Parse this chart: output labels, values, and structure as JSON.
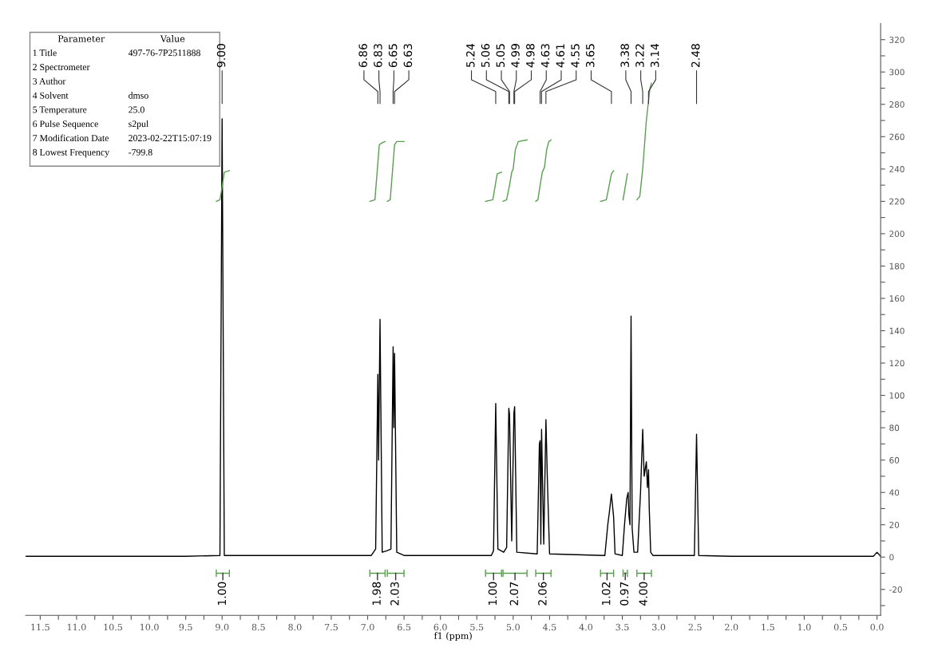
{
  "chart_data": {
    "type": "line",
    "xlabel": "f1 (ppm)",
    "xlim": [
      11.7,
      -0.05
    ],
    "ylim": [
      -36,
      330
    ],
    "xticks": [
      {
        "value": 11.5,
        "label": "11.5"
      },
      {
        "value": 11.25,
        "label": null
      },
      {
        "value": 11.0,
        "label": "11.0"
      },
      {
        "value": 10.75,
        "label": null
      },
      {
        "value": 10.5,
        "label": "10.5"
      },
      {
        "value": 10.25,
        "label": null
      },
      {
        "value": 10.0,
        "label": "10.0"
      },
      {
        "value": 9.75,
        "label": null
      },
      {
        "value": 9.5,
        "label": "9.5"
      },
      {
        "value": 9.25,
        "label": null
      },
      {
        "value": 9.0,
        "label": "9.0"
      },
      {
        "value": 8.75,
        "label": null
      },
      {
        "value": 8.5,
        "label": "8.5"
      },
      {
        "value": 8.25,
        "label": null
      },
      {
        "value": 8.0,
        "label": "8.0"
      },
      {
        "value": 7.75,
        "label": null
      },
      {
        "value": 7.5,
        "label": "7.5"
      },
      {
        "value": 7.25,
        "label": null
      },
      {
        "value": 7.0,
        "label": "7.0"
      },
      {
        "value": 6.75,
        "label": null
      },
      {
        "value": 6.5,
        "label": "6.5"
      },
      {
        "value": 6.25,
        "label": null
      },
      {
        "value": 6.0,
        "label": "6.0"
      },
      {
        "value": 5.75,
        "label": null
      },
      {
        "value": 5.5,
        "label": "5.5"
      },
      {
        "value": 5.25,
        "label": null
      },
      {
        "value": 5.0,
        "label": "5.0"
      },
      {
        "value": 4.75,
        "label": null
      },
      {
        "value": 4.5,
        "label": "4.5"
      },
      {
        "value": 4.25,
        "label": null
      },
      {
        "value": 4.0,
        "label": "4.0"
      },
      {
        "value": 3.75,
        "label": null
      },
      {
        "value": 3.5,
        "label": "3.5"
      },
      {
        "value": 3.25,
        "label": null
      },
      {
        "value": 3.0,
        "label": "3.0"
      },
      {
        "value": 2.75,
        "label": null
      },
      {
        "value": 2.5,
        "label": "2.5"
      },
      {
        "value": 2.25,
        "label": null
      },
      {
        "value": 2.0,
        "label": "2.0"
      },
      {
        "value": 1.75,
        "label": null
      },
      {
        "value": 1.5,
        "label": "1.5"
      },
      {
        "value": 1.25,
        "label": null
      },
      {
        "value": 1.0,
        "label": "1.0"
      },
      {
        "value": 0.75,
        "label": null
      },
      {
        "value": 0.5,
        "label": "0.5"
      },
      {
        "value": 0.25,
        "label": null
      },
      {
        "value": 0.0,
        "label": "0.0"
      }
    ],
    "yticks": [
      {
        "value": -30,
        "label": null
      },
      -20,
      {
        "value": -10,
        "label": null
      },
      0,
      {
        "value": 10,
        "label": null
      },
      20,
      {
        "value": 30,
        "label": null
      },
      40,
      {
        "value": 50,
        "label": null
      },
      60,
      {
        "value": 70,
        "label": null
      },
      80,
      {
        "value": 90,
        "label": null
      },
      100,
      {
        "value": 110,
        "label": null
      },
      120,
      {
        "value": 130,
        "label": null
      },
      140,
      {
        "value": 150,
        "label": null
      },
      160,
      {
        "value": 170,
        "label": null
      },
      180,
      {
        "value": 190,
        "label": null
      },
      200,
      {
        "value": 210,
        "label": null
      },
      220,
      {
        "value": 230,
        "label": null
      },
      240,
      {
        "value": 250,
        "label": null
      },
      260,
      {
        "value": 270,
        "label": null
      },
      280,
      {
        "value": 290,
        "label": null
      },
      300,
      {
        "value": 310,
        "label": null
      },
      320
    ],
    "grid": false,
    "legend": false,
    "marker": "none",
    "line_style": "solid",
    "series": [
      {
        "color": "#000000",
        "x": [
          11.7,
          9.5,
          9.03,
          9.0,
          8.97,
          6.95,
          6.89,
          6.86,
          6.85,
          6.83,
          6.8,
          6.73,
          6.68,
          6.65,
          6.64,
          6.63,
          6.6,
          6.5,
          5.3,
          5.27,
          5.24,
          5.21,
          5.13,
          5.09,
          5.06,
          5.05,
          5.02,
          4.99,
          4.98,
          4.95,
          4.67,
          4.64,
          4.63,
          4.62,
          4.61,
          4.58,
          4.55,
          4.53,
          4.5,
          3.74,
          3.7,
          3.68,
          3.65,
          3.62,
          3.6,
          3.5,
          3.47,
          3.44,
          3.42,
          3.41,
          3.395,
          3.38,
          3.365,
          3.34,
          3.29,
          3.25,
          3.22,
          3.2,
          3.17,
          3.155,
          3.14,
          3.13,
          3.11,
          3.08,
          3.03,
          2.51,
          2.48,
          2.45,
          2.0,
          0.05,
          0.0,
          -0.05
        ],
        "values": [
          0.5,
          0.5,
          1,
          271,
          1,
          1,
          5,
          113,
          60,
          147,
          3,
          4,
          5,
          130,
          80,
          126,
          3,
          1,
          1,
          4,
          95,
          5,
          3,
          6,
          92,
          88,
          10,
          89,
          93,
          3,
          2,
          70,
          72,
          8,
          79,
          8,
          85,
          48,
          2,
          1,
          20,
          27,
          39,
          25,
          2,
          1,
          20,
          36,
          40,
          26,
          20,
          149,
          18,
          3,
          3,
          40,
          79,
          50,
          59,
          43,
          54,
          30,
          3,
          1,
          1,
          1,
          76,
          1,
          0.5,
          0.5,
          3,
          0.5
        ]
      },
      {
        "color": "#5a9e50",
        "x": [
          9.08,
          9.03,
          9.0,
          8.97,
          8.9
        ],
        "values": [
          220,
          221,
          229,
          238,
          239
        ]
      },
      {
        "color": "#5a9e50",
        "x": [
          6.97,
          6.9,
          6.87,
          6.84,
          6.81,
          6.76
        ],
        "values": [
          220,
          221,
          238,
          255,
          256,
          257
        ]
      },
      {
        "color": "#5a9e50",
        "x": [
          6.73,
          6.69,
          6.66,
          6.63,
          6.6,
          6.5
        ],
        "values": [
          220,
          221,
          238,
          255,
          257,
          257
        ]
      },
      {
        "color": "#5a9e50",
        "x": [
          5.38,
          5.28,
          5.25,
          5.22,
          5.16
        ],
        "values": [
          220,
          221,
          229,
          237,
          238
        ]
      },
      {
        "color": "#5a9e50",
        "x": [
          5.14,
          5.09,
          5.05,
          5.02,
          5.0,
          4.97,
          4.93,
          4.81
        ],
        "values": [
          220,
          221,
          230,
          238,
          240,
          252,
          257,
          258
        ]
      },
      {
        "color": "#5a9e50",
        "x": [
          4.69,
          4.66,
          4.63,
          4.6,
          4.57,
          4.54,
          4.51,
          4.48
        ],
        "values": [
          220,
          221,
          230,
          238,
          241,
          252,
          257,
          258
        ]
      },
      {
        "color": "#5a9e50",
        "x": [
          3.8,
          3.72,
          3.68,
          3.65,
          3.62
        ],
        "values": [
          220,
          221,
          230,
          237,
          239
        ]
      },
      {
        "color": "#5a9e50",
        "x": [
          3.49,
          3.43
        ],
        "values": [
          221,
          237
        ]
      },
      {
        "color": "#5a9e50",
        "x": [
          3.3,
          3.26,
          3.22,
          3.17,
          3.12,
          3.1
        ],
        "values": [
          221,
          223,
          240,
          270,
          290,
          293
        ]
      }
    ],
    "annotations": [
      "Parameter\tValue",
      "1 Title\t497-76-7P2511888",
      "2 Spectrometer",
      "3 Author",
      "4 Solvent\tdmso",
      "5 Temperature\t25.0",
      "6 Pulse Sequence\ts2pul",
      "7 Modification Date\t2023-02-22T15:07:19",
      "8 Lowest Frequency\t-799.8",
      {
        "text": "9.00",
        "x": 9.0
      },
      {
        "text": "6.86",
        "x": 6.86
      },
      {
        "text": "6.83",
        "x": 6.83
      },
      {
        "text": "6.65",
        "x": 6.65
      },
      {
        "text": "6.63",
        "x": 6.63
      },
      {
        "text": "5.24",
        "x": 5.24
      },
      {
        "text": "5.06",
        "x": 5.06
      },
      {
        "text": "5.05",
        "x": 5.05
      },
      {
        "text": "4.99",
        "x": 4.99
      },
      {
        "text": "4.98",
        "x": 4.98
      },
      {
        "text": "4.63",
        "x": 4.63
      },
      {
        "text": "4.61",
        "x": 4.61
      },
      {
        "text": "4.55",
        "x": 4.55
      },
      {
        "text": "3.65",
        "x": 3.65
      },
      {
        "text": "3.38",
        "x": 3.38
      },
      {
        "text": "3.22",
        "x": 3.22
      },
      {
        "text": "3.14",
        "x": 3.14
      },
      {
        "text": "2.48",
        "x": 2.48
      },
      "1.00",
      "1.98",
      "2.03",
      "1.00",
      "2.07",
      "2.06",
      "1.02",
      "0.97",
      "4.00"
    ]
  }
}
